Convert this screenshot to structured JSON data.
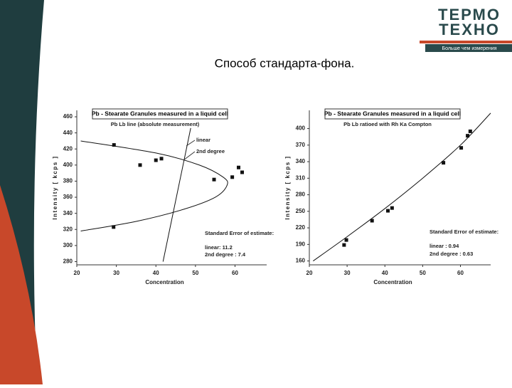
{
  "slide_title": "Способ стандарта-фона.",
  "logo": {
    "line1": "ТЕРМО",
    "line2": "ТЕХНО",
    "tagline": "Больше чем измерения"
  },
  "chart_data": [
    {
      "type": "scatter",
      "title": "Pb - Stearate Granules measured in a liquid cell",
      "subtitle": "Pb Lb line (absolute measurement)",
      "x_label": "Concentration",
      "y_label": "Intensity [ kcps ]",
      "xlim": [
        20,
        68
      ],
      "xticks": [
        20,
        30,
        40,
        50,
        60
      ],
      "ylim": [
        276,
        468
      ],
      "yticks": [
        280,
        300,
        320,
        340,
        360,
        380,
        400,
        420,
        440,
        460
      ],
      "series": [
        {
          "mode": "markers",
          "color": "#111",
          "x": [
            29.4,
            29.3,
            36,
            40,
            41.4,
            54.7,
            59.3,
            60.9,
            61.8
          ],
          "values": [
            425,
            323,
            400,
            406,
            408,
            382,
            385,
            397,
            391
          ]
        },
        {
          "mode": "line",
          "color": "#111",
          "x": [
            41.8,
            48.8
          ],
          "values": [
            280,
            446
          ]
        },
        {
          "mode": "line",
          "color": "#111",
          "x": [
            21,
            40,
            51,
            57,
            58,
            55,
            47,
            35,
            21
          ],
          "values": [
            430,
            415,
            400,
            385,
            375,
            360,
            345,
            330,
            318
          ]
        }
      ],
      "annotations": [
        "linear",
        "2nd degree",
        "Standard Error of estimate:",
        "linear: 11.2",
        "2nd degree : 7.4"
      ]
    },
    {
      "type": "scatter",
      "title": "Pb - Stearate Granules measured in a liquid cell",
      "subtitle": "Pb Lb ratioed with Rh Ka Compton",
      "x_label": "Concentration",
      "y_label": "Intensity [ kcps ]",
      "xlim": [
        20,
        68
      ],
      "xticks": [
        20,
        30,
        40,
        50,
        60
      ],
      "ylim": [
        153,
        433
      ],
      "yticks": [
        160,
        190,
        220,
        250,
        280,
        310,
        340,
        370,
        400
      ],
      "series": [
        {
          "mode": "markers",
          "color": "#111",
          "x": [
            29.2,
            29.8,
            36.6,
            40.8,
            41.9,
            55.5,
            60.2,
            61.9,
            62.6
          ],
          "values": [
            189,
            198,
            233,
            251,
            256,
            338,
            365,
            387,
            395
          ]
        },
        {
          "mode": "line",
          "color": "#111",
          "x": [
            21,
            30,
            40,
            50,
            60,
            68
          ],
          "values": [
            160,
            204,
            255,
            310,
            370,
            428
          ]
        }
      ],
      "annotations": [
        "Standard Error of estimate:",
        "linear : 0.94",
        "2nd degree : 0.63"
      ]
    }
  ]
}
